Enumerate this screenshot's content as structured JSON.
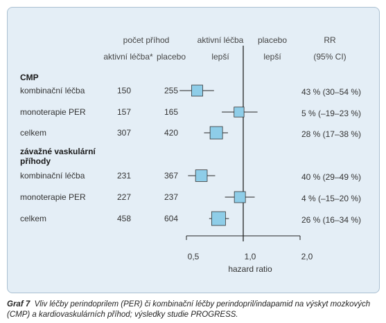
{
  "chart_data": {
    "type": "forest",
    "headers": {
      "counts_title": "počet příhod",
      "col_active": "aktivní léčba*",
      "col_placebo": "placebo",
      "favors_active_1": "aktivní léčba",
      "favors_active_2": "lepší",
      "favors_placebo_1": "placebo",
      "favors_placebo_2": "lepší",
      "rr_1": "RR",
      "rr_2": "(95% CI)"
    },
    "groups": [
      {
        "title": "CMP",
        "rows": [
          {
            "label": "kombinační léčba",
            "active": "150",
            "placebo": "255",
            "ci_text": "43 % (30–54 %)",
            "hr": 0.57,
            "lo": 0.46,
            "hi": 0.7,
            "weight": 0.75
          },
          {
            "label": "monoterapie PER",
            "active": "157",
            "placebo": "165",
            "ci_text": "5 % (–19–23 %)",
            "hr": 0.95,
            "lo": 0.77,
            "hi": 1.19,
            "weight": 0.55
          },
          {
            "label": "celkem",
            "active": "307",
            "placebo": "420",
            "ci_text": "28 % (17–38 %)",
            "hr": 0.72,
            "lo": 0.62,
            "hi": 0.83,
            "weight": 1.0
          }
        ]
      },
      {
        "title": "závažné vaskulární příhody",
        "rows": [
          {
            "label": "kombinační léčba",
            "active": "231",
            "placebo": "367",
            "ci_text": "40 % (29–49 %)",
            "hr": 0.6,
            "lo": 0.51,
            "hi": 0.71,
            "weight": 0.85
          },
          {
            "label": "monoterapie PER",
            "active": "227",
            "placebo": "237",
            "ci_text": "4 % (–15–20 %)",
            "hr": 0.96,
            "lo": 0.8,
            "hi": 1.15,
            "weight": 0.75
          },
          {
            "label": "celkem",
            "active": "458",
            "placebo": "604",
            "ci_text": "26 % (16–34 %)",
            "hr": 0.74,
            "lo": 0.66,
            "hi": 0.84,
            "weight": 1.25
          }
        ]
      }
    ],
    "x_ticks": [
      "0,5",
      "1,0",
      "2,0"
    ],
    "x_tick_values": [
      0.5,
      1.0,
      2.0
    ],
    "x_scale": "log",
    "xlim": [
      0.4,
      2.0
    ],
    "reference_line": 1.0,
    "xlabel": "hazard ratio",
    "marker_color": "#8ecde8"
  },
  "caption": {
    "prefix": "Graf 7",
    "text": "Vliv léčby perindoprilem (PER) či kombinační léčby perindopril/indapamid na výskyt mozkových (CMP) a kardiovaskulárních příhod; výsledky studie PROGRESS."
  }
}
